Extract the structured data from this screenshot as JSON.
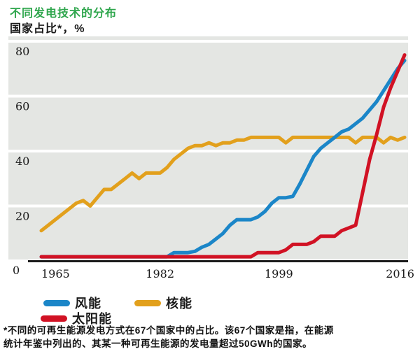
{
  "header": {
    "title": "不同发电技术的分布",
    "unit_label": "国家占比*，%"
  },
  "chart_data": {
    "type": "line",
    "title": "不同发电技术的分布",
    "ylabel": "国家占比*，%",
    "xlabel": "",
    "ylim": [
      0,
      80
    ],
    "y_ticks": [
      0,
      20,
      40,
      60,
      80
    ],
    "x_ticks": [
      1965,
      1982,
      1999,
      2016
    ],
    "grid": "horizontal-gray-bands",
    "legend_position": "bottom",
    "x": [
      1965,
      1966,
      1967,
      1968,
      1969,
      1970,
      1971,
      1972,
      1973,
      1974,
      1975,
      1976,
      1977,
      1978,
      1979,
      1980,
      1981,
      1982,
      1983,
      1984,
      1985,
      1986,
      1987,
      1988,
      1989,
      1990,
      1991,
      1992,
      1993,
      1994,
      1995,
      1996,
      1997,
      1998,
      1999,
      2000,
      2001,
      2002,
      2003,
      2004,
      2005,
      2006,
      2007,
      2008,
      2009,
      2010,
      2011,
      2012,
      2013,
      2014,
      2015,
      2016,
      2017
    ],
    "series": [
      {
        "name": "风能",
        "key": "wind",
        "color": "#1b86c8",
        "values": [
          1.5,
          1.5,
          1.5,
          1.5,
          1.5,
          1.5,
          1.5,
          1.5,
          1.5,
          1.5,
          1.5,
          1.5,
          1.5,
          1.5,
          1.5,
          1.5,
          1.5,
          1.5,
          1.5,
          3,
          3,
          3,
          3.5,
          5,
          6,
          8,
          10,
          13,
          15,
          15,
          15,
          16,
          18,
          21,
          23,
          23,
          23.5,
          28,
          33,
          38,
          41,
          43,
          45,
          47,
          48,
          50,
          52,
          55,
          58,
          62,
          66,
          70,
          73
        ]
      },
      {
        "name": "核能",
        "key": "nuclear",
        "color": "#e2a01c",
        "values": [
          11,
          13,
          15,
          17,
          19,
          21,
          22,
          20,
          23,
          26,
          26,
          28,
          30,
          32,
          30,
          32,
          32,
          32,
          34,
          37,
          39,
          41,
          42,
          42,
          43,
          42,
          43,
          43,
          44,
          44,
          45,
          45,
          45,
          45,
          45,
          43,
          45,
          45,
          45,
          45,
          45,
          45,
          45,
          45,
          45,
          43,
          45,
          45,
          45,
          43,
          45,
          44,
          45
        ]
      },
      {
        "name": "太阳能",
        "key": "solar",
        "color": "#d11224",
        "values": [
          1.5,
          1.5,
          1.5,
          1.5,
          1.5,
          1.5,
          1.5,
          1.5,
          1.5,
          1.5,
          1.5,
          1.5,
          1.5,
          1.5,
          1.5,
          1.5,
          1.5,
          1.5,
          1.5,
          1.5,
          1.5,
          1.5,
          1.5,
          1.5,
          1.5,
          1.5,
          1.5,
          1.5,
          1.5,
          1.5,
          1.5,
          3,
          3,
          3,
          3,
          4,
          6,
          6,
          6,
          7,
          9,
          9,
          9,
          11,
          12,
          13,
          25,
          37,
          46,
          56,
          63,
          69,
          75
        ]
      }
    ]
  },
  "legend": {
    "items": [
      {
        "label": "风能",
        "color": "#1b86c8"
      },
      {
        "label": "核能",
        "color": "#e2a01c"
      },
      {
        "label": "太阳能",
        "color": "#d11224"
      }
    ]
  },
  "footnote": {
    "line1": "*不同的可再生能源发电方式在67个国家中的占比。该67个国家是指，在能源",
    "line2": "统计年鉴中列出的、其某一种可再生能源的发电量超过50GWh的国家。"
  },
  "colors": {
    "title_green": "#2fa64d",
    "band_gray": "#e4e6e3",
    "axis_black": "#1a1a1a",
    "tick_text": "#1a1a1a"
  }
}
